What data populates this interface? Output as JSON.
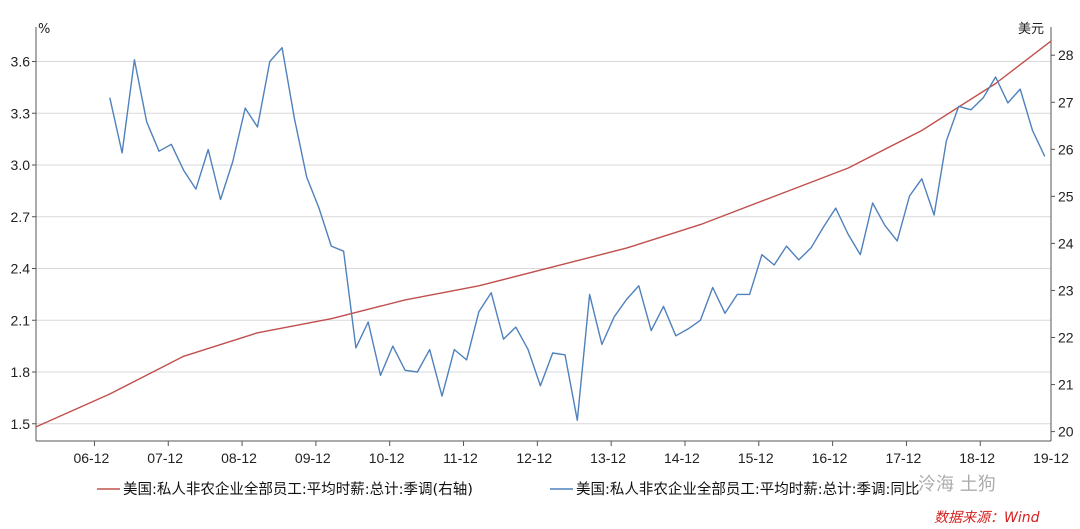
{
  "chart_data": {
    "type": "line",
    "left_axis_unit": "%",
    "right_axis_unit": "美元",
    "x_tick_labels": [
      "06-12",
      "07-12",
      "08-12",
      "09-12",
      "10-12",
      "11-12",
      "12-12",
      "13-12",
      "14-12",
      "15-12",
      "16-12",
      "17-12",
      "18-12",
      "19-12"
    ],
    "y_left_ticks": [
      "1.5",
      "1.8",
      "2.1",
      "2.4",
      "2.7",
      "3.0",
      "3.3",
      "3.6"
    ],
    "y_right_ticks": [
      "20",
      "21",
      "22",
      "23",
      "24",
      "25",
      "26",
      "27",
      "28"
    ],
    "y_left_lim": [
      1.4,
      3.8
    ],
    "y_right_lim": [
      19.8,
      28.6
    ],
    "x_range_months": [
      "2006-03",
      "2019-12"
    ],
    "series": [
      {
        "name": "美国:私人非农企业全部员工:平均时薪:总计:季调(右轴)",
        "axis": "right",
        "color": "#c0504d",
        "x": [
          "2006-03",
          "2007-03",
          "2008-03",
          "2009-03",
          "2010-03",
          "2011-03",
          "2012-03",
          "2013-03",
          "2014-03",
          "2015-03",
          "2016-03",
          "2017-03",
          "2018-03",
          "2019-03",
          "2019-12"
        ],
        "values": [
          20.1,
          20.8,
          21.6,
          22.1,
          22.4,
          22.8,
          23.1,
          23.5,
          23.9,
          24.4,
          25.0,
          25.6,
          26.4,
          27.4,
          28.3
        ]
      },
      {
        "name": "美国:私人非农企业全部员工:平均时薪:总计:季调:同比",
        "axis": "left",
        "color": "#4f81bd",
        "x": [
          "2007-03",
          "2007-05",
          "2007-07",
          "2007-09",
          "2007-11",
          "2008-01",
          "2008-03",
          "2008-05",
          "2008-07",
          "2008-09",
          "2008-11",
          "2009-01",
          "2009-03",
          "2009-05",
          "2009-07",
          "2009-09",
          "2009-11",
          "2010-01",
          "2010-03",
          "2010-05",
          "2010-07",
          "2010-09",
          "2010-11",
          "2011-01",
          "2011-03",
          "2011-05",
          "2011-07",
          "2011-09",
          "2011-11",
          "2012-01",
          "2012-03",
          "2012-05",
          "2012-07",
          "2012-09",
          "2012-11",
          "2013-01",
          "2013-03",
          "2013-05",
          "2013-07",
          "2013-09",
          "2013-11",
          "2014-01",
          "2014-03",
          "2014-05",
          "2014-07",
          "2014-09",
          "2014-11",
          "2015-01",
          "2015-03",
          "2015-05",
          "2015-07",
          "2015-09",
          "2015-11",
          "2016-01",
          "2016-03",
          "2016-05",
          "2016-07",
          "2016-09",
          "2016-11",
          "2017-01",
          "2017-03",
          "2017-05",
          "2017-07",
          "2017-09",
          "2017-11",
          "2018-01",
          "2018-03",
          "2018-05",
          "2018-07",
          "2018-09",
          "2018-11",
          "2019-01",
          "2019-03",
          "2019-05",
          "2019-07",
          "2019-09",
          "2019-11"
        ],
        "values": [
          3.39,
          3.07,
          3.61,
          3.25,
          3.08,
          3.12,
          2.97,
          2.86,
          3.09,
          2.8,
          3.02,
          3.33,
          3.22,
          3.6,
          3.68,
          3.27,
          2.93,
          2.75,
          2.53,
          2.5,
          1.94,
          2.09,
          1.78,
          1.95,
          1.81,
          1.8,
          1.93,
          1.66,
          1.93,
          1.87,
          2.15,
          2.26,
          1.99,
          2.06,
          1.93,
          1.72,
          1.91,
          1.9,
          1.52,
          2.25,
          1.96,
          2.12,
          2.22,
          2.3,
          2.04,
          2.18,
          2.01,
          2.05,
          2.1,
          2.29,
          2.14,
          2.25,
          2.25,
          2.48,
          2.42,
          2.53,
          2.45,
          2.52,
          2.64,
          2.75,
          2.6,
          2.48,
          2.78,
          2.65,
          2.56,
          2.82,
          2.92,
          2.71,
          3.14,
          3.34,
          3.32,
          3.39,
          3.51,
          3.36,
          3.44,
          3.2,
          3.05
        ]
      }
    ]
  },
  "source_note": "数据来源：Wind",
  "watermark": "泠海 土狗"
}
